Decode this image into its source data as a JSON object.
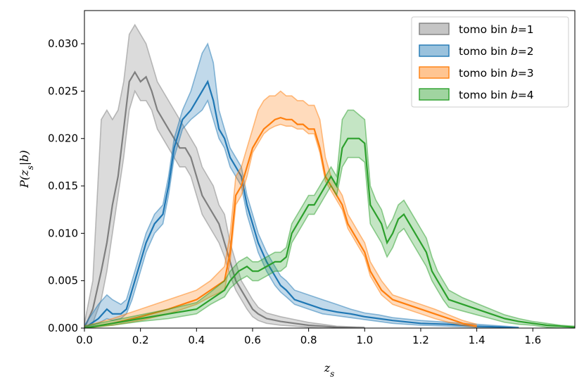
{
  "chart_data": {
    "type": "area",
    "xlabel": "z_s",
    "ylabel": "P(z_s|b)",
    "xlim": [
      0.0,
      1.75
    ],
    "ylim": [
      0.0,
      0.0335
    ],
    "xticks": [
      0.0,
      0.2,
      0.4,
      0.6,
      0.8,
      1.0,
      1.2,
      1.4,
      1.6
    ],
    "yticks": [
      0.0,
      0.005,
      0.01,
      0.015,
      0.02,
      0.025,
      0.03
    ],
    "xtick_labels": [
      "0.0",
      "0.2",
      "0.4",
      "0.6",
      "0.8",
      "1.0",
      "1.2",
      "1.4",
      "1.6"
    ],
    "ytick_labels": [
      "0.000",
      "0.005",
      "0.010",
      "0.015",
      "0.020",
      "0.025",
      "0.030"
    ],
    "legend_position": "top-right",
    "series": [
      {
        "name": "tomo bin b=1",
        "color": "#7f7f7f",
        "x": [
          0.0,
          0.03,
          0.06,
          0.08,
          0.1,
          0.12,
          0.14,
          0.16,
          0.18,
          0.2,
          0.22,
          0.24,
          0.26,
          0.28,
          0.3,
          0.32,
          0.34,
          0.36,
          0.38,
          0.4,
          0.42,
          0.44,
          0.46,
          0.48,
          0.5,
          0.52,
          0.54,
          0.56,
          0.58,
          0.6,
          0.62,
          0.65,
          0.7,
          0.75,
          0.8,
          0.85,
          0.9,
          1.0
        ],
        "mean": [
          0.0,
          0.002,
          0.006,
          0.009,
          0.013,
          0.016,
          0.021,
          0.026,
          0.027,
          0.026,
          0.0265,
          0.025,
          0.023,
          0.022,
          0.021,
          0.02,
          0.019,
          0.019,
          0.018,
          0.016,
          0.014,
          0.013,
          0.012,
          0.011,
          0.009,
          0.007,
          0.005,
          0.004,
          0.003,
          0.002,
          0.0015,
          0.001,
          0.0007,
          0.0005,
          0.0003,
          0.0002,
          0.0001,
          0.0
        ],
        "lower": [
          0.0,
          0.0005,
          0.003,
          0.006,
          0.01,
          0.014,
          0.018,
          0.023,
          0.025,
          0.024,
          0.024,
          0.023,
          0.021,
          0.02,
          0.019,
          0.018,
          0.017,
          0.017,
          0.016,
          0.014,
          0.012,
          0.011,
          0.01,
          0.009,
          0.0075,
          0.0055,
          0.004,
          0.003,
          0.002,
          0.0012,
          0.0008,
          0.0005,
          0.0003,
          0.0002,
          0.0001,
          0.0,
          0.0,
          0.0
        ],
        "upper": [
          0.0005,
          0.005,
          0.022,
          0.023,
          0.022,
          0.023,
          0.026,
          0.031,
          0.032,
          0.031,
          0.03,
          0.028,
          0.026,
          0.025,
          0.024,
          0.023,
          0.022,
          0.021,
          0.02,
          0.019,
          0.017,
          0.016,
          0.015,
          0.013,
          0.012,
          0.009,
          0.007,
          0.005,
          0.004,
          0.003,
          0.0022,
          0.0016,
          0.0012,
          0.0009,
          0.0006,
          0.0004,
          0.0002,
          0.0001
        ]
      },
      {
        "name": "tomo bin b=2",
        "color": "#1f77b4",
        "x": [
          0.0,
          0.05,
          0.08,
          0.1,
          0.13,
          0.15,
          0.17,
          0.2,
          0.22,
          0.25,
          0.28,
          0.3,
          0.32,
          0.35,
          0.38,
          0.4,
          0.42,
          0.44,
          0.46,
          0.48,
          0.5,
          0.52,
          0.54,
          0.56,
          0.58,
          0.6,
          0.62,
          0.65,
          0.68,
          0.7,
          0.72,
          0.75,
          0.8,
          0.85,
          0.9,
          0.95,
          1.0,
          1.05,
          1.1,
          1.2,
          1.3,
          1.4,
          1.5,
          1.55
        ],
        "mean": [
          0.0,
          0.001,
          0.002,
          0.0015,
          0.0015,
          0.002,
          0.004,
          0.007,
          0.009,
          0.011,
          0.012,
          0.015,
          0.019,
          0.022,
          0.023,
          0.024,
          0.025,
          0.026,
          0.024,
          0.021,
          0.02,
          0.018,
          0.017,
          0.016,
          0.013,
          0.011,
          0.009,
          0.007,
          0.0055,
          0.0045,
          0.004,
          0.003,
          0.0025,
          0.002,
          0.0017,
          0.0015,
          0.0012,
          0.001,
          0.0008,
          0.0005,
          0.0004,
          0.0002,
          0.0001,
          0.0
        ],
        "lower": [
          0.0,
          0.0005,
          0.001,
          0.0008,
          0.001,
          0.0015,
          0.003,
          0.006,
          0.008,
          0.01,
          0.011,
          0.014,
          0.018,
          0.021,
          0.022,
          0.0225,
          0.023,
          0.024,
          0.022,
          0.02,
          0.019,
          0.017,
          0.016,
          0.015,
          0.012,
          0.01,
          0.008,
          0.006,
          0.0045,
          0.0038,
          0.0033,
          0.0025,
          0.002,
          0.0015,
          0.0013,
          0.0011,
          0.0009,
          0.0007,
          0.0005,
          0.0003,
          0.0002,
          0.0001,
          0.0,
          0.0
        ],
        "upper": [
          0.0003,
          0.0025,
          0.0035,
          0.003,
          0.0025,
          0.003,
          0.005,
          0.008,
          0.01,
          0.012,
          0.013,
          0.016,
          0.02,
          0.023,
          0.025,
          0.027,
          0.029,
          0.03,
          0.028,
          0.023,
          0.021,
          0.019,
          0.018,
          0.017,
          0.014,
          0.012,
          0.01,
          0.008,
          0.0065,
          0.0055,
          0.005,
          0.004,
          0.0035,
          0.003,
          0.0025,
          0.002,
          0.0016,
          0.0014,
          0.0011,
          0.0008,
          0.0006,
          0.0004,
          0.0002,
          0.0001
        ]
      },
      {
        "name": "tomo bin b=3",
        "color": "#ff7f0e",
        "x": [
          0.0,
          0.1,
          0.2,
          0.3,
          0.35,
          0.4,
          0.45,
          0.5,
          0.52,
          0.54,
          0.56,
          0.58,
          0.6,
          0.62,
          0.64,
          0.66,
          0.68,
          0.7,
          0.72,
          0.74,
          0.76,
          0.78,
          0.8,
          0.82,
          0.84,
          0.86,
          0.88,
          0.9,
          0.92,
          0.94,
          0.96,
          0.98,
          1.0,
          1.02,
          1.04,
          1.06,
          1.1,
          1.15,
          1.2,
          1.25,
          1.3,
          1.35,
          1.4
        ],
        "mean": [
          0.0,
          0.0005,
          0.0012,
          0.002,
          0.0025,
          0.003,
          0.004,
          0.005,
          0.008,
          0.014,
          0.015,
          0.017,
          0.019,
          0.02,
          0.021,
          0.0215,
          0.022,
          0.0222,
          0.022,
          0.022,
          0.0215,
          0.0215,
          0.021,
          0.021,
          0.019,
          0.016,
          0.015,
          0.014,
          0.013,
          0.011,
          0.01,
          0.009,
          0.008,
          0.006,
          0.005,
          0.004,
          0.003,
          0.0025,
          0.002,
          0.0015,
          0.001,
          0.0005,
          0.0002
        ],
        "lower": [
          0.0,
          0.0003,
          0.0008,
          0.0015,
          0.002,
          0.0025,
          0.0033,
          0.004,
          0.007,
          0.013,
          0.014,
          0.016,
          0.0185,
          0.0195,
          0.0205,
          0.021,
          0.0213,
          0.0215,
          0.0213,
          0.0213,
          0.021,
          0.021,
          0.0205,
          0.0205,
          0.0185,
          0.0155,
          0.0145,
          0.0135,
          0.0125,
          0.0105,
          0.0095,
          0.0085,
          0.0075,
          0.0055,
          0.0045,
          0.0035,
          0.0025,
          0.002,
          0.0015,
          0.001,
          0.0006,
          0.0003,
          0.0001
        ],
        "upper": [
          0.0002,
          0.001,
          0.002,
          0.003,
          0.0035,
          0.004,
          0.005,
          0.0065,
          0.01,
          0.016,
          0.017,
          0.019,
          0.021,
          0.023,
          0.024,
          0.0245,
          0.0245,
          0.025,
          0.0245,
          0.0245,
          0.024,
          0.024,
          0.0235,
          0.0235,
          0.022,
          0.018,
          0.016,
          0.015,
          0.014,
          0.012,
          0.011,
          0.01,
          0.009,
          0.007,
          0.006,
          0.005,
          0.0035,
          0.003,
          0.0025,
          0.002,
          0.0014,
          0.0008,
          0.0004
        ]
      },
      {
        "name": "tomo bin b=4",
        "color": "#2ca02c",
        "x": [
          0.0,
          0.1,
          0.2,
          0.3,
          0.4,
          0.45,
          0.5,
          0.52,
          0.55,
          0.58,
          0.6,
          0.62,
          0.65,
          0.68,
          0.7,
          0.72,
          0.74,
          0.76,
          0.78,
          0.8,
          0.82,
          0.84,
          0.86,
          0.88,
          0.9,
          0.92,
          0.94,
          0.96,
          0.98,
          1.0,
          1.02,
          1.04,
          1.06,
          1.08,
          1.1,
          1.12,
          1.14,
          1.16,
          1.18,
          1.2,
          1.22,
          1.24,
          1.26,
          1.28,
          1.3,
          1.35,
          1.4,
          1.45,
          1.5,
          1.55,
          1.6,
          1.65,
          1.7,
          1.75
        ],
        "mean": [
          0.0,
          0.0005,
          0.001,
          0.0015,
          0.002,
          0.003,
          0.004,
          0.005,
          0.006,
          0.0065,
          0.006,
          0.006,
          0.0065,
          0.007,
          0.007,
          0.0075,
          0.01,
          0.011,
          0.012,
          0.013,
          0.013,
          0.014,
          0.015,
          0.016,
          0.015,
          0.019,
          0.02,
          0.02,
          0.02,
          0.0195,
          0.013,
          0.012,
          0.011,
          0.009,
          0.01,
          0.0115,
          0.012,
          0.011,
          0.01,
          0.009,
          0.008,
          0.006,
          0.005,
          0.004,
          0.003,
          0.0025,
          0.002,
          0.0015,
          0.001,
          0.0007,
          0.0005,
          0.0003,
          0.0002,
          0.0001
        ],
        "lower": [
          0.0,
          0.0003,
          0.0007,
          0.001,
          0.0015,
          0.0025,
          0.0033,
          0.0042,
          0.005,
          0.0055,
          0.005,
          0.005,
          0.0055,
          0.006,
          0.006,
          0.0065,
          0.009,
          0.01,
          0.011,
          0.012,
          0.012,
          0.013,
          0.014,
          0.015,
          0.014,
          0.017,
          0.018,
          0.018,
          0.018,
          0.0175,
          0.011,
          0.01,
          0.009,
          0.0075,
          0.0085,
          0.01,
          0.0105,
          0.0095,
          0.0085,
          0.0075,
          0.0065,
          0.005,
          0.004,
          0.003,
          0.0022,
          0.0018,
          0.0014,
          0.001,
          0.0006,
          0.0004,
          0.0003,
          0.0001,
          0.0,
          0.0
        ],
        "upper": [
          0.0002,
          0.0008,
          0.0014,
          0.002,
          0.0027,
          0.0038,
          0.005,
          0.006,
          0.007,
          0.0075,
          0.007,
          0.007,
          0.0075,
          0.008,
          0.008,
          0.0085,
          0.011,
          0.012,
          0.013,
          0.014,
          0.014,
          0.015,
          0.016,
          0.017,
          0.016,
          0.022,
          0.023,
          0.023,
          0.0225,
          0.022,
          0.015,
          0.0135,
          0.0125,
          0.0105,
          0.0115,
          0.013,
          0.0135,
          0.0125,
          0.0115,
          0.0105,
          0.0095,
          0.0075,
          0.006,
          0.005,
          0.004,
          0.0032,
          0.0026,
          0.002,
          0.0014,
          0.001,
          0.0007,
          0.0005,
          0.0003,
          0.0002
        ]
      }
    ]
  }
}
